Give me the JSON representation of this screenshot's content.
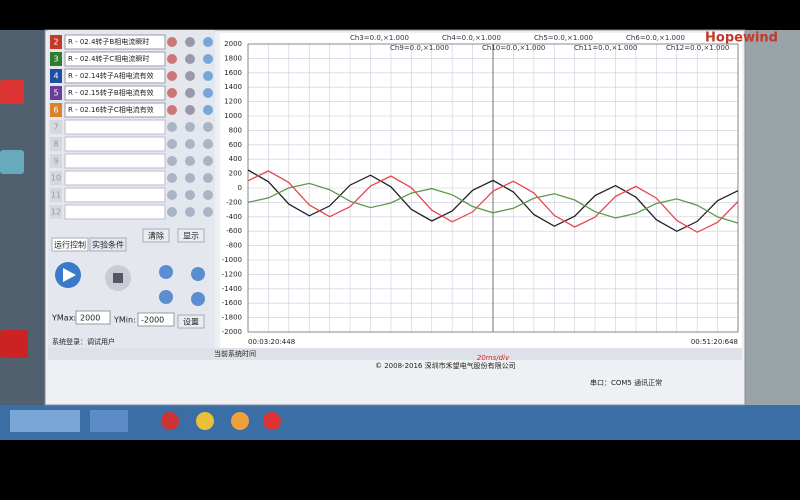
{
  "header": {
    "brand": "Hopewind",
    "channel_labels": [
      "Ch3=0.0,×1.000",
      "Ch4=0.0,×1.000",
      "Ch5=0.0,×1.000",
      "Ch6=0.0,×1.000",
      "Ch9=0.0,×1.000",
      "Ch10=0.0,×1.000",
      "Ch11=0.0,×1.000",
      "Ch12=0.0,×1.000"
    ]
  },
  "channels": [
    {
      "num": "2",
      "label": "R - 02.4转子B相电流瞬时",
      "color": "#c0392b"
    },
    {
      "num": "3",
      "label": "R - 02.4转子C相电流瞬时",
      "color": "#2e7d32"
    },
    {
      "num": "4",
      "label": "R - 02.14转子A相电流有效",
      "color": "#1f4fa0"
    },
    {
      "num": "5",
      "label": "R - 02.15转子B相电流有效",
      "color": "#6a3d9a"
    },
    {
      "num": "6",
      "label": "R - 02.16转子C相电流有效",
      "color": "#d9822b"
    }
  ],
  "empty_channels": [
    "7",
    "8",
    "9",
    "10",
    "11",
    "12"
  ],
  "buttons": {
    "clear": "清除",
    "show": "显示",
    "apply": "设置"
  },
  "tabs": [
    "运行控制",
    "实验条件"
  ],
  "y_range": {
    "ymax_label": "YMax:",
    "ymax": "2000",
    "ymin_label": "YMin:",
    "ymin": "-2000"
  },
  "status": {
    "login": "系统登录：调试用户",
    "system_time": "当前系统时间",
    "copyright": "© 2008-2016 深圳市禾望电气股份有限公司",
    "port": "串口：COM5 通讯正常"
  },
  "chart_data": {
    "type": "line",
    "x_label": "20ms/div",
    "categories": [
      "00:03:20:448",
      null,
      null,
      null,
      null,
      null,
      null,
      null,
      null,
      null,
      null,
      null,
      null,
      null,
      null,
      null,
      null,
      null,
      null,
      null,
      null,
      null,
      null,
      null,
      "00:51:20:648"
    ],
    "series": [
      {
        "color": "#222222",
        "values": [
          250,
          88,
          -224,
          -386,
          -248,
          40,
          178,
          16,
          -296,
          -458,
          -320,
          -32,
          106,
          -56,
          -368,
          -530,
          -392,
          -104,
          34,
          -128,
          -440,
          -602,
          -464,
          -176,
          -38
        ]
      },
      {
        "color": "#e8474f",
        "values": [
          100,
          238,
          76,
          -236,
          -398,
          -260,
          28,
          166,
          4,
          -308,
          -470,
          -332,
          -44,
          94,
          -68,
          -380,
          -542,
          -404,
          -116,
          22,
          -140,
          -452,
          -614,
          -476,
          -188
        ]
      },
      {
        "color": "#5b9a4a",
        "values": [
          -200,
          -137,
          1,
          64,
          -23,
          -185,
          -272,
          -209,
          -71,
          -8,
          -95,
          -257,
          -344,
          -281,
          -143,
          -80,
          -167,
          -329,
          -416,
          -353,
          -215,
          -152,
          -239,
          -401,
          -488
        ]
      }
    ],
    "ylim": [
      -2000,
      2000
    ],
    "yticks": [
      -2000,
      -1800,
      -1600,
      -1400,
      -1200,
      -1000,
      -800,
      -600,
      -400,
      -200,
      0,
      200,
      400,
      600,
      800,
      1000,
      1200,
      1400,
      1600,
      1800,
      2000
    ],
    "grid": true
  }
}
